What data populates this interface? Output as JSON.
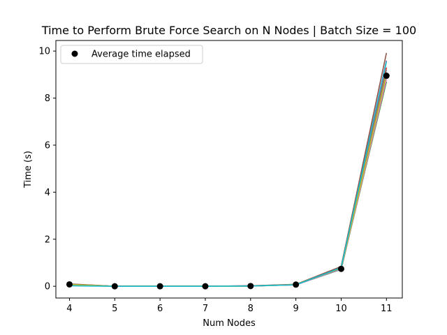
{
  "chart_data": {
    "type": "line",
    "title": "Time to Perform Brute Force Search on N Nodes | Batch Size = 100",
    "xlabel": "Num Nodes",
    "ylabel": "Time (s)",
    "xlim": [
      3.7,
      11.35
    ],
    "ylim": [
      -0.5,
      10.45
    ],
    "xticks": [
      4,
      5,
      6,
      7,
      8,
      9,
      10,
      11
    ],
    "yticks": [
      0,
      2,
      4,
      6,
      8,
      10
    ],
    "legend": {
      "placement": "top-left",
      "entries": [
        "Average time elapsed"
      ]
    },
    "x": [
      4,
      5,
      6,
      7,
      8,
      9,
      10,
      11
    ],
    "scatter": {
      "name": "Average time elapsed",
      "color": "#000000",
      "values": [
        0.08,
        0.0,
        0.0,
        0.0,
        0.01,
        0.07,
        0.74,
        8.95
      ]
    },
    "series": [
      {
        "color": "#1f77b4",
        "values": [
          0.06,
          0.0,
          0.0,
          0.0,
          0.01,
          0.06,
          0.72,
          8.9
        ]
      },
      {
        "color": "#ff7f0e",
        "values": [
          0.08,
          0.0,
          0.0,
          0.0,
          0.01,
          0.07,
          0.75,
          9.1
        ]
      },
      {
        "color": "#2ca02c",
        "values": [
          0.05,
          0.0,
          0.0,
          0.0,
          0.01,
          0.06,
          0.73,
          8.7
        ]
      },
      {
        "color": "#d62728",
        "values": [
          0.07,
          0.0,
          0.0,
          0.0,
          0.01,
          0.07,
          0.78,
          9.3
        ]
      },
      {
        "color": "#9467bd",
        "values": [
          0.09,
          0.0,
          0.0,
          0.0,
          0.02,
          0.08,
          0.8,
          9.6
        ]
      },
      {
        "color": "#8c564b",
        "values": [
          0.1,
          0.0,
          0.0,
          0.0,
          0.02,
          0.08,
          0.84,
          9.92
        ]
      },
      {
        "color": "#e377c2",
        "values": [
          0.06,
          0.0,
          0.0,
          0.0,
          0.01,
          0.06,
          0.74,
          8.8
        ]
      },
      {
        "color": "#7f7f7f",
        "values": [
          0.08,
          0.0,
          0.0,
          0.0,
          0.01,
          0.07,
          0.76,
          9.2
        ]
      },
      {
        "color": "#bcbd22",
        "values": [
          0.07,
          0.0,
          0.0,
          0.0,
          0.01,
          0.07,
          0.77,
          9.0
        ]
      },
      {
        "color": "#17becf",
        "values": [
          0.02,
          0.0,
          0.0,
          0.0,
          0.01,
          0.06,
          0.79,
          9.55
        ]
      }
    ]
  }
}
